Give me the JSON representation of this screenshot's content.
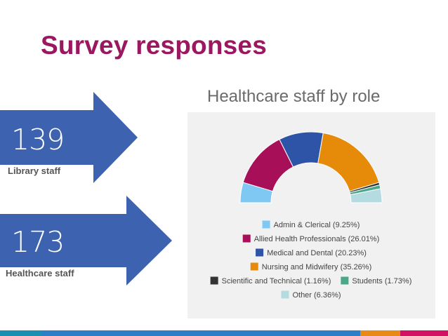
{
  "slide": {
    "title": "Survey responses"
  },
  "stats": {
    "library": {
      "value": "139",
      "label": "Library staff"
    },
    "healthcare": {
      "value": "173",
      "label": "Healthcare staff"
    }
  },
  "colors": {
    "title": "#9b1860",
    "arrow": "#3d63b0",
    "bottom_bar": [
      "#1b8fb0",
      "#2a7fc8",
      "#e88a17",
      "#d31162"
    ]
  },
  "chart_data": {
    "type": "pie",
    "variant": "semi-donut",
    "title": "Healthcare staff by role",
    "legend_position": "bottom",
    "slices": [
      {
        "label": "Admin & Clerical",
        "value": 9.25,
        "legend": "Admin & Clerical (9.25%)",
        "color": "#80c8f4"
      },
      {
        "label": "Allied Health Professionals",
        "value": 26.01,
        "legend": "Allied Health Professionals (26.01%)",
        "color": "#a70f58"
      },
      {
        "label": "Medical and Dental",
        "value": 20.23,
        "legend": "Medical and Dental (20.23%)",
        "color": "#2e54a8"
      },
      {
        "label": "Nursing and Midwifery",
        "value": 35.26,
        "legend": "Nursing and Midwifery (35.26%)",
        "color": "#e68a0a"
      },
      {
        "label": "Scientific and Technical",
        "value": 1.16,
        "legend": "Scientific and Technical (1.16%)",
        "color": "#333333"
      },
      {
        "label": "Students",
        "value": 1.73,
        "legend": "Students (1.73%)",
        "color": "#4aa88a"
      },
      {
        "label": "Other",
        "value": 6.36,
        "legend": "Other (6.36%)",
        "color": "#b4dbe0"
      }
    ]
  }
}
